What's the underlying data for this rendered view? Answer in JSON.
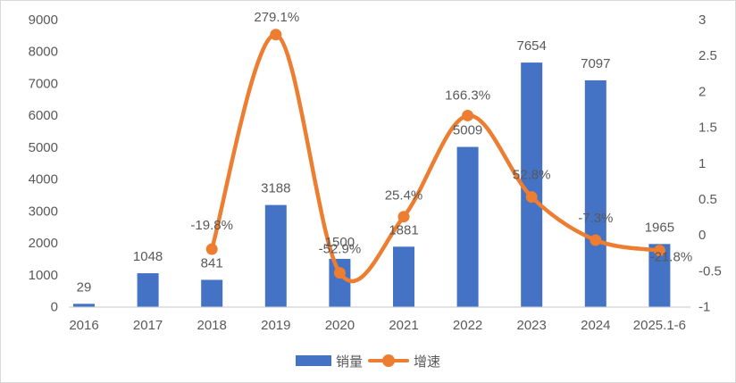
{
  "chart_data": {
    "type": "combo",
    "title": "",
    "categories": [
      "2016",
      "2017",
      "2018",
      "2019",
      "2020",
      "2021",
      "2022",
      "2023",
      "2024",
      "2025.1-6"
    ],
    "series": [
      {
        "name": "销量",
        "type": "bar",
        "axis": "left",
        "color": "#4472C4",
        "values": [
          29,
          1048,
          841,
          3188,
          1500,
          1881,
          5009,
          7654,
          7097,
          1965
        ],
        "labels": [
          "29",
          "1048",
          "841",
          "3188",
          "1500",
          "1881",
          "5009",
          "7654",
          "7097",
          "1965"
        ]
      },
      {
        "name": "增速",
        "type": "line",
        "axis": "right",
        "color": "#ED7D31",
        "values": [
          null,
          null,
          -0.198,
          2.791,
          -0.529,
          0.254,
          1.663,
          0.528,
          -0.073,
          -0.218
        ],
        "labels": [
          null,
          null,
          "-19.8%",
          "279.1%",
          "-52.9%",
          "25.4%",
          "166.3%",
          "52.8%",
          "-7.3%",
          "-21.8%"
        ]
      }
    ],
    "left_axis": {
      "min": 0,
      "max": 9000,
      "step": 1000,
      "ticks": [
        "0",
        "1000",
        "2000",
        "3000",
        "4000",
        "5000",
        "6000",
        "7000",
        "8000",
        "9000"
      ]
    },
    "right_axis": {
      "min": -1,
      "max": 3,
      "step": 0.5,
      "ticks": [
        "-1",
        "-0.5",
        "0",
        "0.5",
        "1",
        "1.5",
        "2",
        "2.5",
        "3"
      ]
    },
    "legend": {
      "position": "bottom",
      "items": [
        "销量",
        "增速"
      ]
    },
    "grid": false,
    "colors": {
      "text": "#595959",
      "axis_line": "#D9D9D9",
      "background": "#FFFFFF",
      "border": "#D9D9D9"
    },
    "layout_hints": {
      "smoothed_line": true,
      "line_label_offsets": [
        null,
        null,
        [
          0,
          -27
        ],
        [
          1,
          -20
        ],
        [
          0,
          -27
        ],
        [
          0,
          -24
        ],
        [
          0,
          -23
        ],
        [
          0,
          -25
        ],
        [
          0,
          -25
        ],
        [
          13,
          7
        ]
      ]
    }
  }
}
